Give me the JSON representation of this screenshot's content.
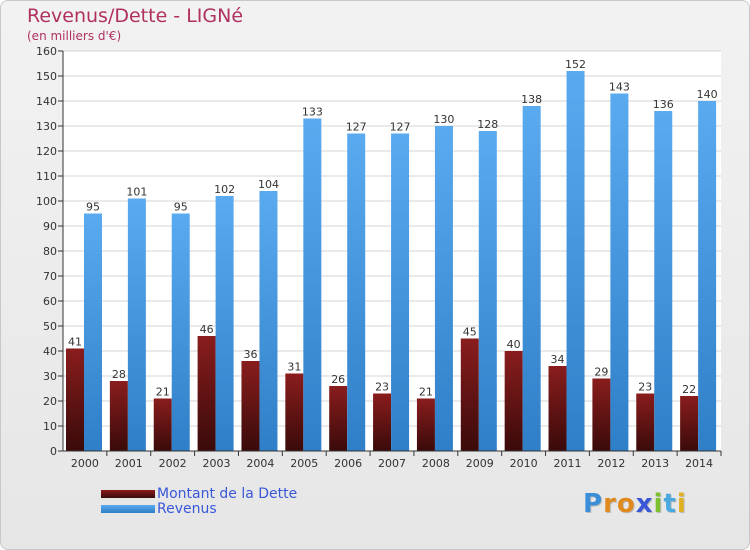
{
  "title": "Revenus/Dette - LIGNé",
  "subtitle": "(en milliers d'€)",
  "brand": {
    "letters": [
      "P",
      "r",
      "o",
      "x",
      "i",
      "t",
      "i"
    ],
    "colors": [
      "#3a8fd8",
      "#e08a1e",
      "#e08a1e",
      "#3a57d8",
      "#7cbf2f",
      "#4aa8e0",
      "#e0b020"
    ]
  },
  "colors": {
    "dette_top": "#8a1d1d",
    "dette_bottom": "#3a0a0a",
    "revenus_top": "#5aaaf0",
    "revenus_bottom": "#2f7fc8"
  },
  "chart_data": {
    "type": "bar",
    "categories": [
      "2000",
      "2001",
      "2002",
      "2003",
      "2004",
      "2005",
      "2006",
      "2007",
      "2008",
      "2009",
      "2010",
      "2011",
      "2012",
      "2013",
      "2014"
    ],
    "series": [
      {
        "name": "Montant de la Dette",
        "values": [
          41,
          28,
          21,
          46,
          36,
          31,
          26,
          23,
          21,
          45,
          40,
          34,
          29,
          23,
          22
        ]
      },
      {
        "name": "Revenus",
        "values": [
          95,
          101,
          95,
          102,
          104,
          133,
          127,
          127,
          130,
          128,
          138,
          152,
          143,
          136,
          140
        ]
      }
    ],
    "ylim": [
      0,
      160
    ],
    "yticks": [
      "0",
      "10",
      "20",
      "30",
      "40",
      "50",
      "60",
      "70",
      "80",
      "90",
      "100",
      "110",
      "120",
      "130",
      "140",
      "150",
      "160"
    ],
    "grid": true,
    "legend": "bottom-left"
  }
}
